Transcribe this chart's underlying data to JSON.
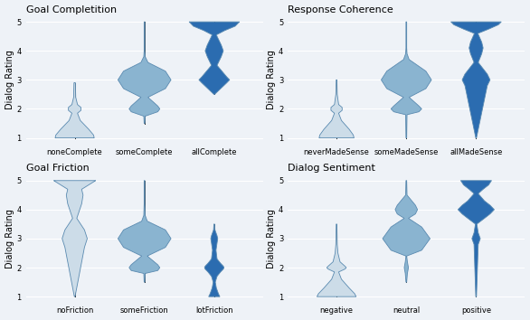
{
  "titles": [
    "Goal Completition",
    "Response Coherence",
    "Goal Friction",
    "Dialog Sentiment"
  ],
  "xlabels": [
    [
      "noneComplete",
      "someComplete",
      "allComplete"
    ],
    [
      "neverMadeSense",
      "someMadeSense",
      "allMadeSense"
    ],
    [
      "noFriction",
      "someFriction",
      "lotFriction"
    ],
    [
      "negative",
      "neutral",
      "positive"
    ]
  ],
  "ylabel": "Dialog Rating",
  "yticks": [
    1,
    2,
    3,
    4,
    5
  ],
  "colors": [
    [
      "#ccdce8",
      "#8ab4d0",
      "#2b6cb0"
    ],
    [
      "#ccdce8",
      "#8ab4d0",
      "#2b6cb0"
    ],
    [
      "#ccdce8",
      "#8ab4d0",
      "#2b6cb0"
    ],
    [
      "#ccdce8",
      "#8ab4d0",
      "#2b6cb0"
    ]
  ],
  "edge_color": "#5a8ab0",
  "line_color": "#222222",
  "background_color": "#eef2f7",
  "grid_color": "#ffffff",
  "title_fontsize": 8,
  "label_fontsize": 6,
  "ylabel_fontsize": 7
}
